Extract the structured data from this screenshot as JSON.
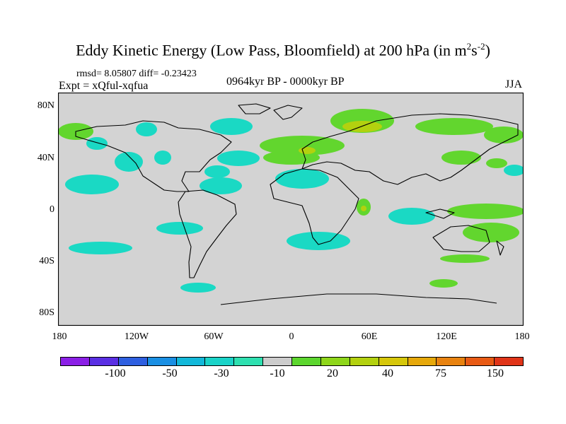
{
  "header": {
    "title_main": "Eddy Kinetic Energy (Low Pass, Bloomfield) at 200 hPa (in m",
    "title_sup1": "2",
    "title_mid": "s",
    "title_sup2": "-2",
    "title_end": ")",
    "stats": "rmsd= 8.05807 diff= -0.23423",
    "expt": "Expt = xQful-xqfua",
    "period": "0964kyr BP - 0000kyr BP",
    "season": "JJA"
  },
  "axes": {
    "y_labels": [
      "80N",
      "40N",
      "0",
      "40S",
      "80S"
    ],
    "x_labels": [
      "180",
      "120W",
      "60W",
      "0",
      "60E",
      "120E",
      "180"
    ]
  },
  "colorbar": {
    "colors": [
      "#8b1fe6",
      "#5a2fe3",
      "#2e5fe0",
      "#1a8fe3",
      "#12b8d9",
      "#1ad3c8",
      "#2ee0b0",
      "#cccccc",
      "#5cd62e",
      "#8ed61a",
      "#b3d10f",
      "#d6c70a",
      "#e6a80a",
      "#e8820f",
      "#e85a14",
      "#e03418"
    ],
    "labels": [
      "-100",
      "-50",
      "-30",
      "-10",
      "20",
      "40",
      "75",
      "150"
    ]
  },
  "map_colors": {
    "background": "#d3d3d3",
    "cyan": "#1ad9c4",
    "green": "#62d62e",
    "yellow_green": "#b3d10f"
  }
}
